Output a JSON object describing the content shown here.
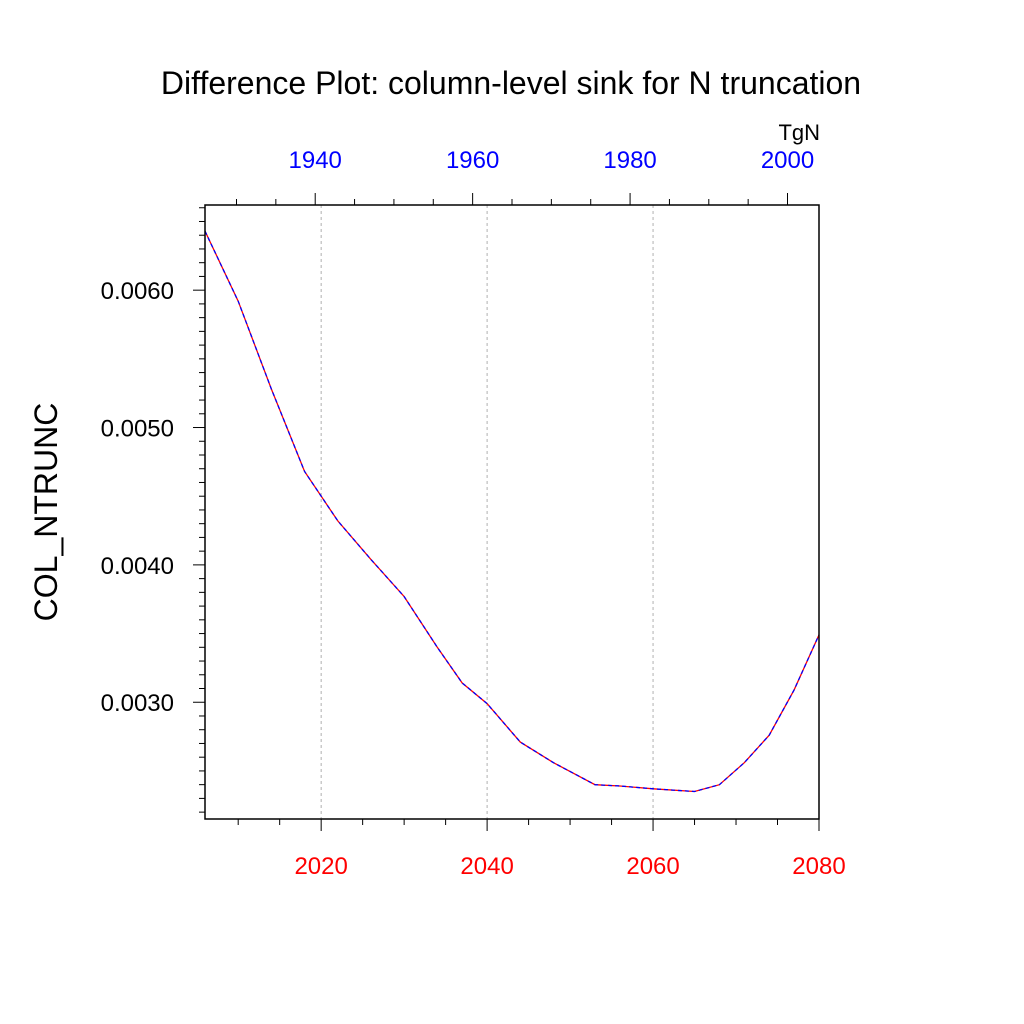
{
  "chart_data": {
    "type": "line",
    "title": "Difference Plot: column-level sink for N truncation",
    "ylabel": "COL_NTRUNC",
    "units_label": "TgN",
    "ylim": [
      0.00215,
      0.00662
    ],
    "yticks": [
      {
        "value": 0.003,
        "label": "0.0030"
      },
      {
        "value": 0.004,
        "label": "0.0040"
      },
      {
        "value": 0.005,
        "label": "0.0050"
      },
      {
        "value": 0.006,
        "label": "0.0060"
      }
    ],
    "x_bottom": {
      "range": [
        2006,
        2080
      ],
      "ticks": [
        {
          "value": 2020,
          "label": "2020"
        },
        {
          "value": 2040,
          "label": "2040"
        },
        {
          "value": 2060,
          "label": "2060"
        },
        {
          "value": 2080,
          "label": "2080"
        }
      ],
      "color": "#ff0000"
    },
    "x_top": {
      "range": [
        1926,
        2004
      ],
      "ticks": [
        {
          "value": 1940,
          "label": "1940"
        },
        {
          "value": 1960,
          "label": "1960"
        },
        {
          "value": 1980,
          "label": "1980"
        },
        {
          "value": 2000,
          "label": "2000"
        }
      ],
      "color": "#0000ff"
    },
    "grid": "vertical dotted",
    "series": [
      {
        "color": "#ff0000",
        "x": [
          2006,
          2010,
          2014,
          2018,
          2022,
          2026,
          2030,
          2034,
          2037,
          2040,
          2044,
          2048,
          2053,
          2056,
          2060,
          2065,
          2068,
          2071,
          2074,
          2077,
          2080
        ],
        "y": [
          0.00643,
          0.00592,
          0.00528,
          0.00468,
          0.00432,
          0.00404,
          0.00377,
          0.0034,
          0.00314,
          0.00299,
          0.00271,
          0.00256,
          0.0024,
          0.00239,
          0.00237,
          0.00235,
          0.0024,
          0.00256,
          0.00276,
          0.00309,
          0.00349
        ]
      },
      {
        "color": "#0000ff",
        "x": [
          2006,
          2010,
          2014,
          2018,
          2022,
          2026,
          2030,
          2034,
          2037,
          2040,
          2044,
          2048,
          2053,
          2056,
          2060,
          2065,
          2068,
          2071,
          2074,
          2077,
          2080
        ],
        "y": [
          0.00643,
          0.00592,
          0.00528,
          0.00468,
          0.00432,
          0.00404,
          0.00377,
          0.0034,
          0.00314,
          0.00299,
          0.00271,
          0.00256,
          0.0024,
          0.00239,
          0.00237,
          0.00235,
          0.0024,
          0.00256,
          0.00276,
          0.00309,
          0.00349
        ]
      }
    ]
  }
}
